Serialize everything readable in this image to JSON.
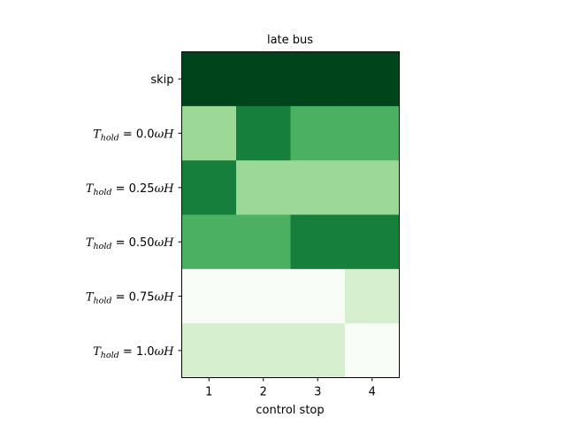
{
  "chart_data": {
    "type": "heatmap",
    "title": "late bus",
    "xlabel": "control stop",
    "ylabel": "",
    "x_categories": [
      "1",
      "2",
      "3",
      "4"
    ],
    "rows": [
      {
        "label": "skip",
        "label_math": null
      },
      {
        "label": "T_hold = 0.0ωH",
        "label_math": {
          "base": "T",
          "sub": "hold",
          "rest": " = 0.0ωH"
        }
      },
      {
        "label": "T_hold = 0.25ωH",
        "label_math": {
          "base": "T",
          "sub": "hold",
          "rest": " = 0.25ωH"
        }
      },
      {
        "label": "T_hold = 0.50ωH",
        "label_math": {
          "base": "T",
          "sub": "hold",
          "rest": " = 0.50ωH"
        }
      },
      {
        "label": "T_hold = 0.75ωH",
        "label_math": {
          "base": "T",
          "sub": "hold",
          "rest": " = 0.75ωH"
        }
      },
      {
        "label": "T_hold = 1.0ωH",
        "label_math": {
          "base": "T",
          "sub": "hold",
          "rest": " = 1.0ωH"
        }
      }
    ],
    "values": [
      [
        5,
        5,
        5,
        5
      ],
      [
        2,
        4,
        3,
        3
      ],
      [
        4,
        2,
        2,
        2
      ],
      [
        3,
        3,
        4,
        4
      ],
      [
        0,
        0,
        0,
        1
      ],
      [
        1,
        1,
        1,
        0
      ]
    ],
    "colormap": "Greens",
    "color_levels": {
      "0": "#f7fcf5",
      "1": "#d5efcf",
      "2": "#9bd795",
      "3": "#4bb062",
      "4": "#167f3c",
      "5": "#00441b"
    },
    "grid": false
  }
}
